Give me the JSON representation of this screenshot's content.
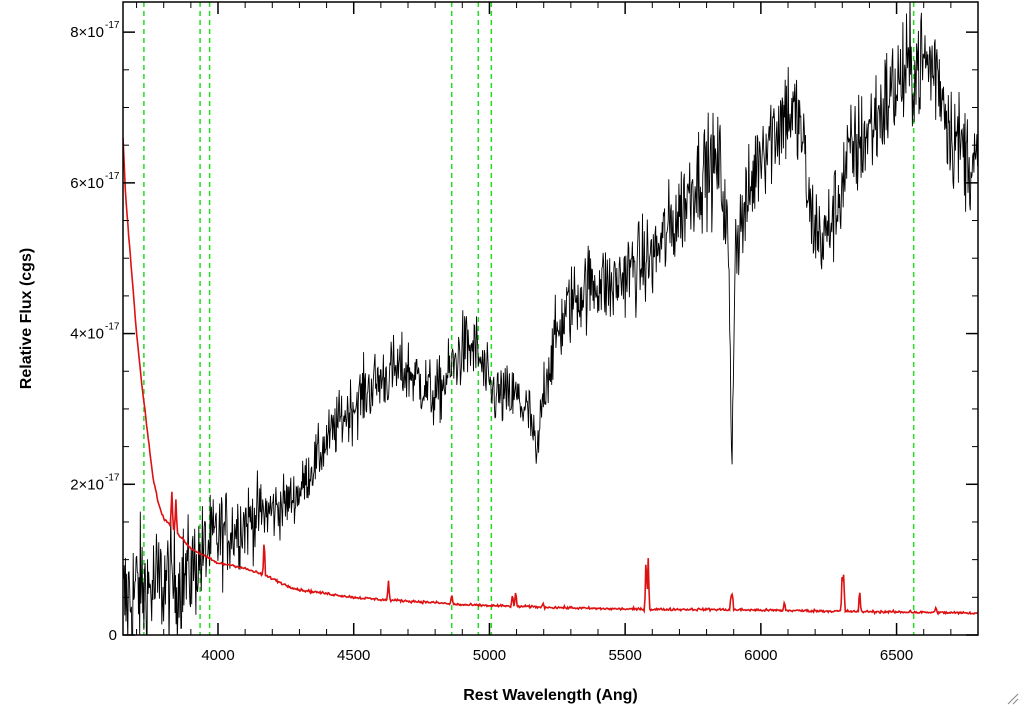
{
  "chart_data": {
    "type": "line",
    "xlabel": "Rest Wavelength (Ang)",
    "ylabel": "Relative Flux (cgs)",
    "xlim": [
      3650,
      6800
    ],
    "ylim": [
      0,
      8.4e-17
    ],
    "x_ticks": [
      {
        "value": 4000,
        "label": "4000"
      },
      {
        "value": 4500,
        "label": "4500"
      },
      {
        "value": 5000,
        "label": "5000"
      },
      {
        "value": 5500,
        "label": "5500"
      },
      {
        "value": 6000,
        "label": "6000"
      },
      {
        "value": 6500,
        "label": "6500"
      }
    ],
    "y_ticks": [
      {
        "value": 0,
        "mantissa": "0",
        "exponent": ""
      },
      {
        "value": 2e-17,
        "mantissa": "2×10",
        "exponent": "-17"
      },
      {
        "value": 4e-17,
        "mantissa": "4×10",
        "exponent": "-17"
      },
      {
        "value": 6e-17,
        "mantissa": "6×10",
        "exponent": "-17"
      },
      {
        "value": 8e-17,
        "mantissa": "8×10",
        "exponent": "-17"
      }
    ],
    "vertical_lines": [
      3727,
      3934,
      3969,
      4861,
      4959,
      5007,
      6563
    ],
    "vertical_line_color": "#22dd22",
    "series": [
      {
        "color": "#000000",
        "noise_amp": 0.06,
        "points": [
          [
            3650,
            0.4
          ],
          [
            3700,
            0.6
          ],
          [
            3750,
            0.6
          ],
          [
            3800,
            0.7
          ],
          [
            3850,
            0.7
          ],
          [
            3900,
            0.85
          ],
          [
            3950,
            1.1
          ],
          [
            4000,
            1.3
          ],
          [
            4050,
            1.4
          ],
          [
            4100,
            1.5
          ],
          [
            4150,
            1.6
          ],
          [
            4200,
            1.65
          ],
          [
            4250,
            1.75
          ],
          [
            4300,
            1.9
          ],
          [
            4350,
            2.25
          ],
          [
            4400,
            2.55
          ],
          [
            4450,
            2.85
          ],
          [
            4500,
            3.05
          ],
          [
            4550,
            3.25
          ],
          [
            4600,
            3.4
          ],
          [
            4650,
            3.5
          ],
          [
            4700,
            3.5
          ],
          [
            4750,
            3.35
          ],
          [
            4800,
            3.15
          ],
          [
            4850,
            3.45
          ],
          [
            4900,
            3.8
          ],
          [
            4950,
            3.8
          ],
          [
            5000,
            3.25
          ],
          [
            5050,
            3.15
          ],
          [
            5100,
            3.15
          ],
          [
            5150,
            2.9
          ],
          [
            5175,
            2.3
          ],
          [
            5200,
            3.3
          ],
          [
            5250,
            4.0
          ],
          [
            5300,
            4.4
          ],
          [
            5350,
            4.6
          ],
          [
            5400,
            4.7
          ],
          [
            5450,
            4.6
          ],
          [
            5500,
            4.8
          ],
          [
            5550,
            4.9
          ],
          [
            5600,
            5.0
          ],
          [
            5650,
            5.3
          ],
          [
            5700,
            5.6
          ],
          [
            5750,
            6.0
          ],
          [
            5800,
            6.2
          ],
          [
            5850,
            6.2
          ],
          [
            5880,
            5.2
          ],
          [
            5893,
            2.2
          ],
          [
            5905,
            5.2
          ],
          [
            5950,
            5.7
          ],
          [
            6000,
            6.5
          ],
          [
            6050,
            6.7
          ],
          [
            6100,
            7.0
          ],
          [
            6150,
            6.7
          ],
          [
            6180,
            5.6
          ],
          [
            6230,
            5.2
          ],
          [
            6280,
            5.7
          ],
          [
            6320,
            6.3
          ],
          [
            6400,
            6.7
          ],
          [
            6450,
            7.0
          ],
          [
            6500,
            7.3
          ],
          [
            6550,
            7.5
          ],
          [
            6600,
            7.6
          ],
          [
            6650,
            7.5
          ],
          [
            6700,
            6.7
          ],
          [
            6750,
            6.4
          ],
          [
            6800,
            6.2
          ]
        ]
      },
      {
        "color": "#dd1111",
        "points": [
          [
            3650,
            6.6
          ],
          [
            3660,
            5.8
          ],
          [
            3680,
            4.9
          ],
          [
            3700,
            4.0
          ],
          [
            3720,
            3.3
          ],
          [
            3740,
            2.7
          ],
          [
            3760,
            2.1
          ],
          [
            3780,
            1.75
          ],
          [
            3800,
            1.55
          ],
          [
            3850,
            1.35
          ],
          [
            3900,
            1.15
          ],
          [
            3950,
            1.05
          ],
          [
            4000,
            0.95
          ],
          [
            4050,
            0.93
          ],
          [
            4100,
            0.88
          ],
          [
            4150,
            0.82
          ],
          [
            4200,
            0.75
          ],
          [
            4250,
            0.66
          ],
          [
            4300,
            0.6
          ],
          [
            4400,
            0.55
          ],
          [
            4500,
            0.5
          ],
          [
            4600,
            0.47
          ],
          [
            4700,
            0.45
          ],
          [
            4800,
            0.43
          ],
          [
            4900,
            0.4
          ],
          [
            5000,
            0.39
          ],
          [
            5200,
            0.37
          ],
          [
            5400,
            0.35
          ],
          [
            5600,
            0.34
          ],
          [
            5800,
            0.34
          ],
          [
            6000,
            0.33
          ],
          [
            6200,
            0.32
          ],
          [
            6400,
            0.31
          ],
          [
            6600,
            0.3
          ],
          [
            6800,
            0.29
          ]
        ],
        "spikes": [
          [
            3830,
            1.9
          ],
          [
            3845,
            1.8
          ],
          [
            4170,
            1.3
          ],
          [
            4628,
            0.72
          ],
          [
            4861,
            0.55
          ],
          [
            5085,
            0.55
          ],
          [
            5097,
            0.6
          ],
          [
            5198,
            0.42
          ],
          [
            5577,
            1.08
          ],
          [
            5585,
            1.02
          ],
          [
            5890,
            0.55
          ],
          [
            5895,
            0.58
          ],
          [
            6087,
            0.45
          ],
          [
            6300,
            0.88
          ],
          [
            6305,
            0.8
          ],
          [
            6364,
            0.62
          ],
          [
            6550,
            0.33
          ],
          [
            6645,
            0.38
          ]
        ]
      }
    ]
  }
}
